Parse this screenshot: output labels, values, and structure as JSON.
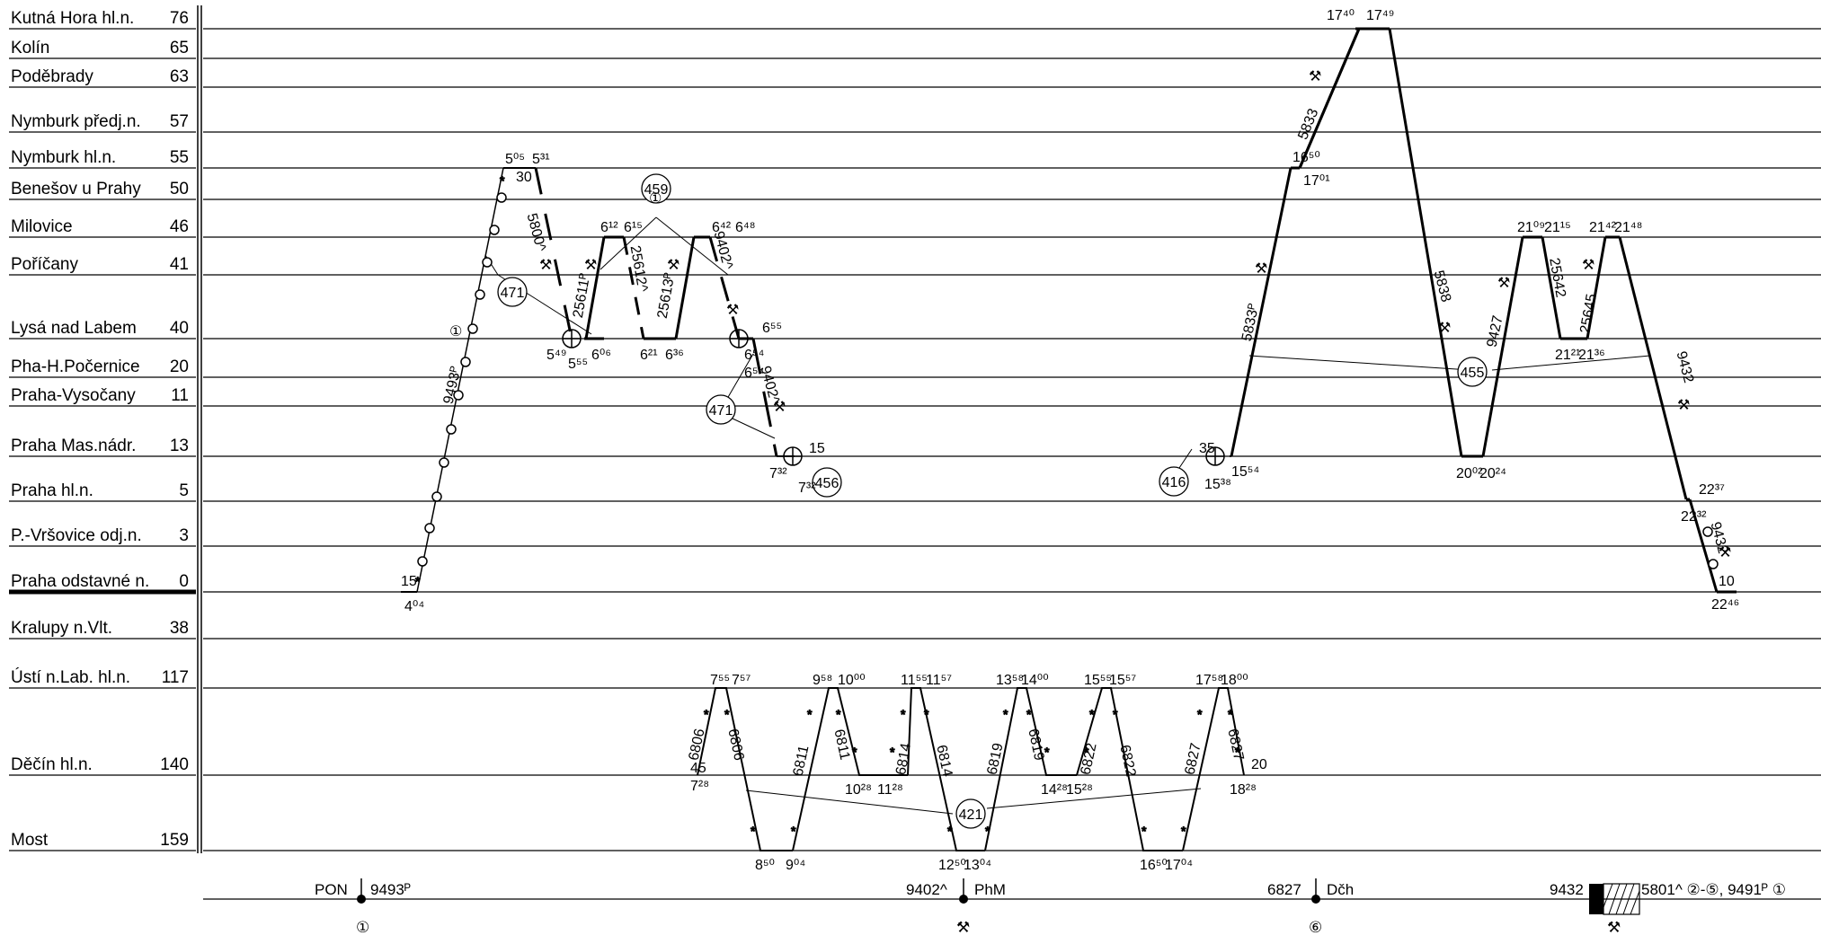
{
  "stations": [
    {
      "name": "Kutná Hora hl.n.",
      "km": "76"
    },
    {
      "name": "Kolín",
      "km": "65"
    },
    {
      "name": "Poděbrady",
      "km": "63"
    },
    {
      "name": "Nymburk předj.n.",
      "km": "57"
    },
    {
      "name": "Nymburk hl.n.",
      "km": "55"
    },
    {
      "name": "Benešov u Prahy",
      "km": "50"
    },
    {
      "name": "Milovice",
      "km": "46"
    },
    {
      "name": "Poříčany",
      "km": "41"
    },
    {
      "name": "Lysá nad Labem",
      "km": "40"
    },
    {
      "name": "Pha-H.Počernice",
      "km": "20"
    },
    {
      "name": "Praha-Vysočany",
      "km": "11"
    },
    {
      "name": "Praha Mas.nádr.",
      "km": "13"
    },
    {
      "name": "Praha hl.n.",
      "km": "5"
    },
    {
      "name": "P.-Vršovice odj.n.",
      "km": "3"
    },
    {
      "name": "Praha odstavné n.",
      "km": "0"
    },
    {
      "name": "Kralupy n.Vlt.",
      "km": "38"
    },
    {
      "name": "Ústí n.Lab. hl.n.",
      "km": "117"
    },
    {
      "name": "Děčín hl.n.",
      "km": "140"
    },
    {
      "name": "Most",
      "km": "159"
    }
  ],
  "circuits": [
    {
      "label": "471"
    },
    {
      "label": "459"
    },
    {
      "label": "471"
    },
    {
      "label": "456"
    },
    {
      "label": "416"
    },
    {
      "label": "455"
    },
    {
      "label": "421"
    }
  ],
  "trains": [
    {
      "label": "9493ᴾ"
    },
    {
      "label": "5800^"
    },
    {
      "label": "25611ᴾ"
    },
    {
      "label": "25612^"
    },
    {
      "label": "25613ᴾ"
    },
    {
      "label": "9402^"
    },
    {
      "label": "9402^"
    },
    {
      "label": "5833ᴾ"
    },
    {
      "label": "5833"
    },
    {
      "label": "5838"
    },
    {
      "label": "9427"
    },
    {
      "label": "25642"
    },
    {
      "label": "25645"
    },
    {
      "label": "9432"
    },
    {
      "label": "9432"
    },
    {
      "label": "6806"
    },
    {
      "label": "6806"
    },
    {
      "label": "6811"
    },
    {
      "label": "6811"
    },
    {
      "label": "6814"
    },
    {
      "label": "6814"
    },
    {
      "label": "6819"
    },
    {
      "label": "6819"
    },
    {
      "label": "6822"
    },
    {
      "label": "6822"
    },
    {
      "label": "6827"
    },
    {
      "label": "6827"
    }
  ],
  "times": [
    "5⁰⁵",
    "5³¹",
    "30",
    "5⁴⁹",
    "5⁵⁵",
    "6⁰⁶",
    "6¹²",
    "6¹⁵",
    "6⁴²",
    "6⁴⁸",
    "6²¹",
    "6³⁶",
    "6⁵⁵",
    "6⁵⁴",
    "6⁵⁴",
    "7³²",
    "7³²",
    "15",
    "15",
    "4⁰⁴",
    "17⁴⁰",
    "17⁴⁹",
    "16⁵⁰",
    "17⁰¹",
    "35",
    "15⁵⁴",
    "15³⁸",
    "20⁰²",
    "20²⁴",
    "21⁰⁹",
    "21¹⁵",
    "21⁴²",
    "21⁴⁸",
    "21²¹",
    "21³⁶",
    "22³⁷",
    "22³²",
    "10",
    "22⁴⁶",
    "7⁵⁵",
    "7⁵⁷",
    "45",
    "7²⁸",
    "8⁵⁰",
    "9⁰⁴",
    "9⁵⁸",
    "10⁰⁰",
    "10²⁸",
    "11²⁸",
    "11⁵⁵",
    "11⁵⁷",
    "12⁵⁰",
    "13⁰⁴",
    "13⁵⁸",
    "14⁰⁰",
    "14²⁸",
    "15²⁸",
    "15⁵⁵",
    "15⁵⁷",
    "16⁵⁰",
    "17⁰⁴",
    "17⁵⁸",
    "18⁰⁰",
    "20",
    "18²⁸"
  ],
  "marks": {
    "one": "①",
    "six": "⑥",
    "two_five": "②-⑤",
    "tool": "⚒"
  },
  "legend": [
    {
      "code": "PON",
      "train": "9493ᴾ",
      "mark": "①"
    },
    {
      "code": "PhM",
      "train": "9402^",
      "mark": "⚒"
    },
    {
      "code": "Dčh",
      "train": "6827",
      "mark": "⑥"
    },
    {
      "train": "9432",
      "text": "5801^ ②-⑤, 9491ᴾ ①",
      "mark": "⚒"
    }
  ]
}
